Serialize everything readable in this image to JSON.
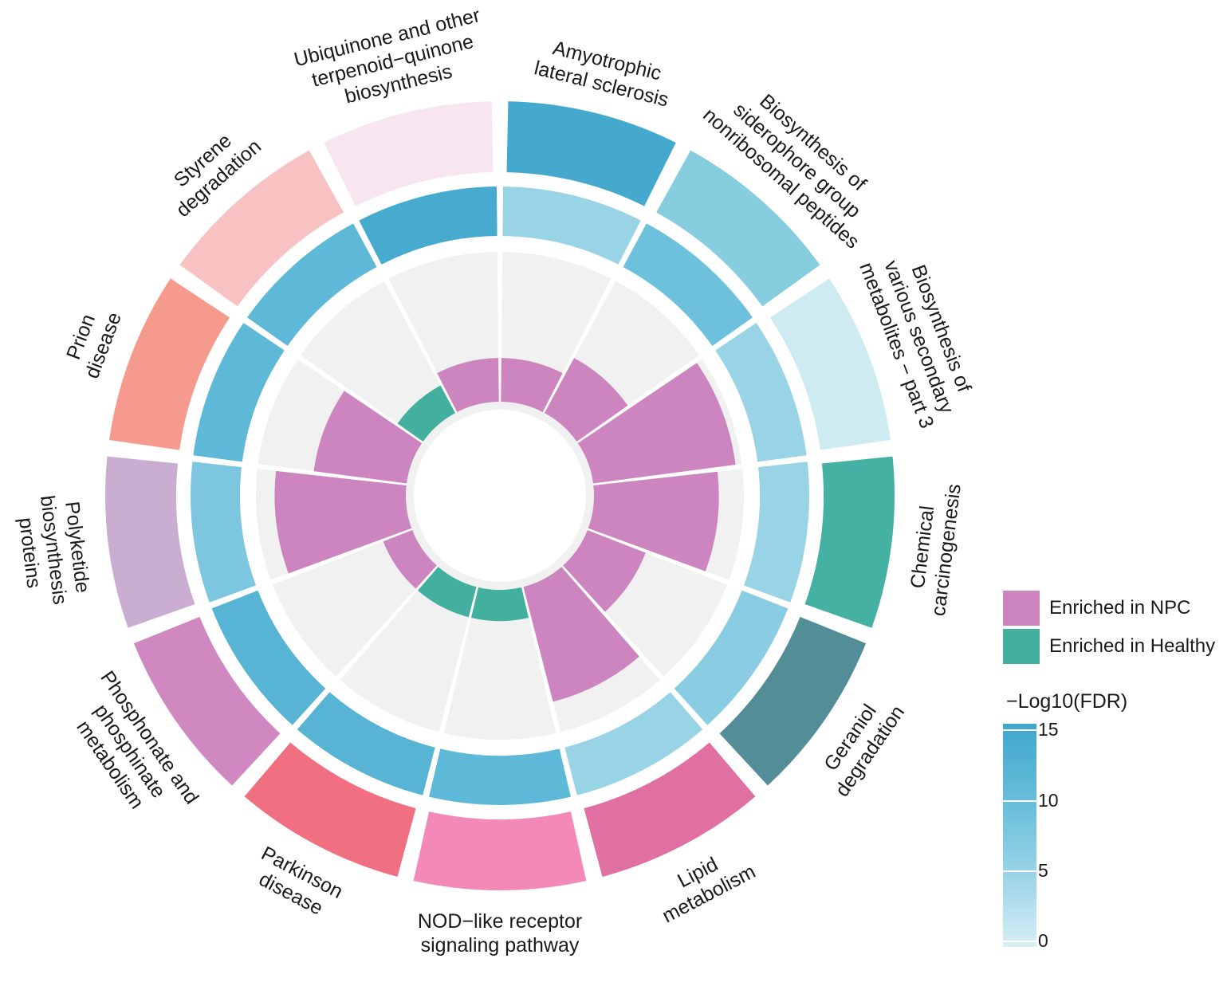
{
  "chart_data": {
    "type": "circular-bar",
    "categories": [
      "Amyotrophic lateral sclerosis",
      "Biosynthesis of siderophore group nonribosomal peptides",
      "Biosynthesis of various secondary metabolites − part 3",
      "Chemical carcinogenesis",
      "Geraniol degradation",
      "Lipid metabolism",
      "NOD−like receptor signaling pathway",
      "Parkinson disease",
      "Phosphonate and phosphinate metabolism",
      "Polyketide biosynthesis proteins",
      "Prion disease",
      "Styrene degradation",
      "Ubiquinone and other terpenoid−quinone biosynthesis"
    ],
    "label_lines": [
      [
        "Amyotrophic",
        "lateral sclerosis"
      ],
      [
        "Biosynthesis of",
        "siderophore group",
        "nonribosomal peptides"
      ],
      [
        "Biosynthesis of",
        "various secondary",
        "metabolites − part 3"
      ],
      [
        "Chemical",
        "carcinogenesis"
      ],
      [
        "Geraniol",
        "degradation"
      ],
      [
        "Lipid",
        "metabolism"
      ],
      [
        "NOD−like receptor",
        "signaling pathway"
      ],
      [
        "Parkinson",
        "disease"
      ],
      [
        "Phosphonate and",
        "phosphinate",
        "metabolism"
      ],
      [
        "Polyketide",
        "biosynthesis",
        "proteins"
      ],
      [
        "Prion",
        "disease"
      ],
      [
        "Styrene",
        "degradation"
      ],
      [
        "Ubiquinone and other",
        "terpenoid−quinone",
        "biosynthesis"
      ]
    ],
    "outer_ring_colors": [
      "#44a9cc",
      "#87cde0",
      "#cdebf1",
      "#44b1a2",
      "#538e98",
      "#e06fa2",
      "#f389b6",
      "#f07082",
      "#cf89c0",
      "#c9aed1",
      "#f59a8d",
      "#f8c2c2",
      "#f7e5f0"
    ],
    "fdr_ring": {
      "name": "−Log10(FDR)",
      "values": [
        6,
        9,
        6,
        6,
        7,
        6,
        11,
        12,
        12,
        8,
        11,
        11,
        14
      ],
      "scale_min": 0,
      "scale_max": 15,
      "scale_ticks": [
        0,
        5,
        10,
        15
      ]
    },
    "bar_max": 12,
    "bars": [
      {
        "value": 3.5,
        "group": "Enriched in NPC"
      },
      {
        "value": 5,
        "group": "Enriched in NPC"
      },
      {
        "value": 11.5,
        "group": "Enriched in NPC"
      },
      {
        "value": 10,
        "group": "Enriched in NPC"
      },
      {
        "value": 5,
        "group": "Enriched in NPC"
      },
      {
        "value": 9.5,
        "group": "Enriched in NPC"
      },
      {
        "value": 2.5,
        "group": "Enriched in Healthy"
      },
      {
        "value": 2.5,
        "group": "Enriched in Healthy"
      },
      {
        "value": 2.5,
        "group": "Enriched in NPC"
      },
      {
        "value": 10.5,
        "group": "Enriched in NPC"
      },
      {
        "value": 7.5,
        "group": "Enriched in NPC"
      },
      {
        "value": 2.5,
        "group": "Enriched in Healthy"
      },
      {
        "value": 3.5,
        "group": "Enriched in NPC"
      }
    ],
    "legend": [
      {
        "label": "Enriched in NPC",
        "color": "#cd85bf"
      },
      {
        "label": "Enriched in Healthy",
        "color": "#43b09f"
      }
    ],
    "background_track_color": "#f1f1f1"
  }
}
